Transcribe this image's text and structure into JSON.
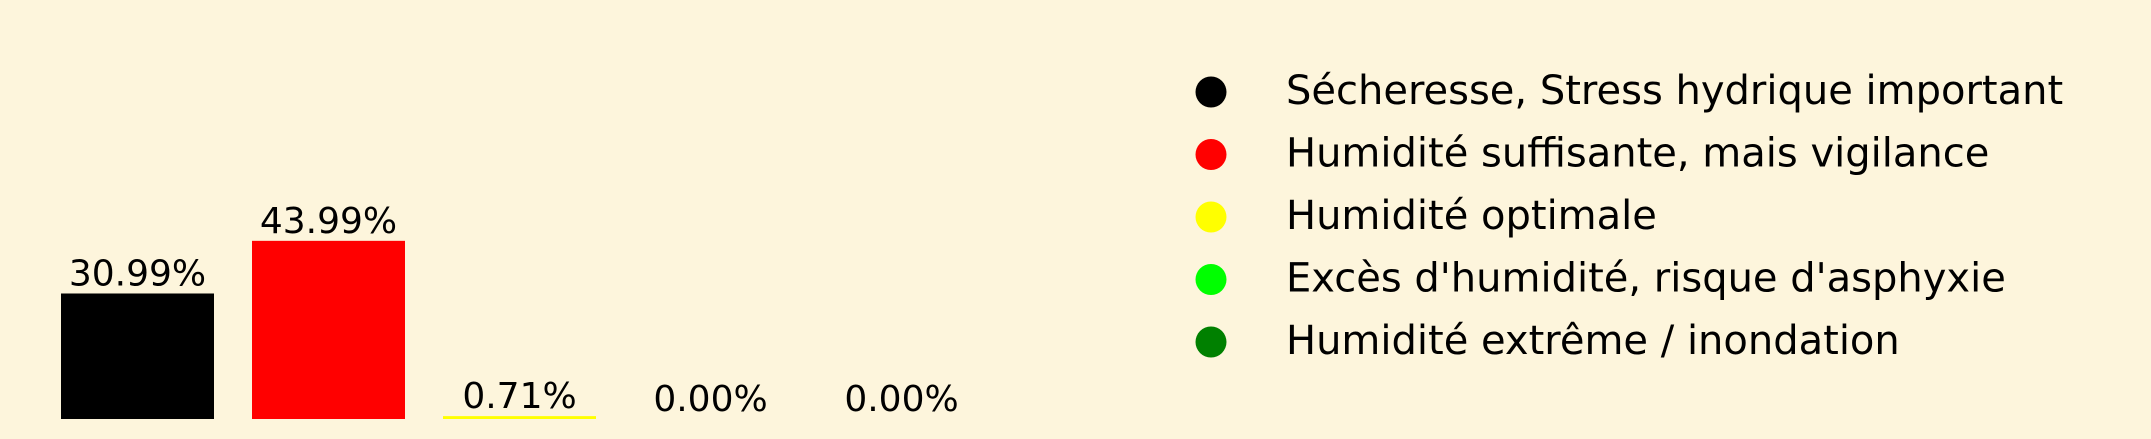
{
  "chart_data": {
    "type": "bar",
    "categories": [
      "Sécheresse, Stress hydrique important",
      "Humidité suffisante, mais vigilance",
      "Humidité optimale",
      "Excès d'humidité, risque d'asphyxie",
      "Humidité extrême / inondation"
    ],
    "values": [
      30.99,
      43.99,
      0.71,
      0.0,
      0.0
    ],
    "value_labels": [
      "30.99%",
      "43.99%",
      "0.71%",
      "0.00%",
      "0.00%"
    ],
    "colors": [
      "#000000",
      "#ff0000",
      "#ffff00",
      "#00ff00",
      "#008000"
    ],
    "ylim": [
      0,
      100
    ],
    "grid": false,
    "legend_placement": "right",
    "title": "",
    "xlabel": "",
    "ylabel": ""
  },
  "colors": {
    "background": "#fdf5dc",
    "text": "#000000"
  }
}
